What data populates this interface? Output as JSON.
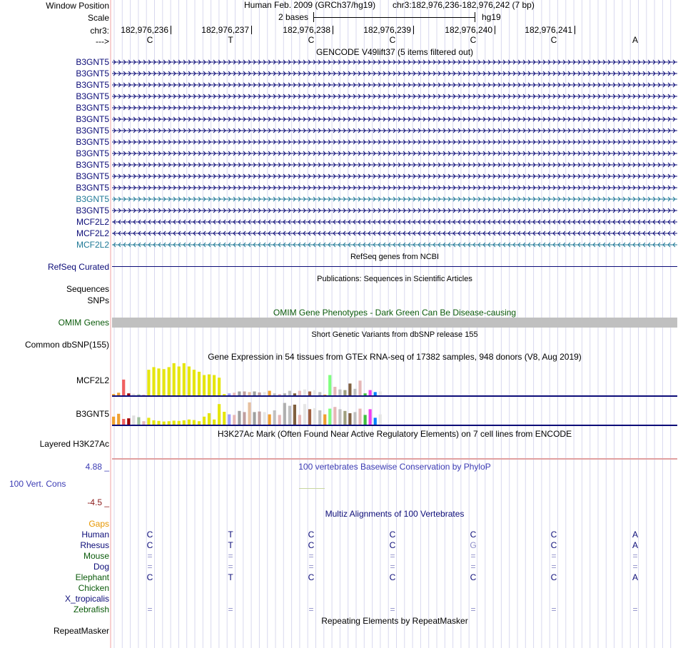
{
  "header": {
    "window_position_label": "Window Position",
    "scale_label": "Scale",
    "chr_label": "chr3:",
    "strand_label": "--->",
    "assembly": "Human Feb. 2009 (GRCh37/hg19)",
    "position": "chr3:182,976,236-182,976,242 (7 bp)",
    "scale_text": "2 bases",
    "scale_db": "hg19",
    "coords": [
      "182,976,236",
      "182,976,237",
      "182,976,238",
      "182,976,239",
      "182,976,240",
      "182,976,241"
    ],
    "bases": [
      "C",
      "T",
      "C",
      "C",
      "C",
      "C",
      "A"
    ]
  },
  "gencode": {
    "title": "GENCODE V49lift37 (5 items filtered out)",
    "genes": [
      {
        "name": "B3GNT5",
        "dir": ">",
        "color": "#0c0c78"
      },
      {
        "name": "B3GNT5",
        "dir": ">",
        "color": "#0c0c78"
      },
      {
        "name": "B3GNT5",
        "dir": ">",
        "color": "#0c0c78"
      },
      {
        "name": "B3GNT5",
        "dir": ">",
        "color": "#0c0c78"
      },
      {
        "name": "B3GNT5",
        "dir": ">",
        "color": "#0c0c78"
      },
      {
        "name": "B3GNT5",
        "dir": ">",
        "color": "#0c0c78"
      },
      {
        "name": "B3GNT5",
        "dir": ">",
        "color": "#0c0c78"
      },
      {
        "name": "B3GNT5",
        "dir": ">",
        "color": "#0c0c78"
      },
      {
        "name": "B3GNT5",
        "dir": ">",
        "color": "#0c0c78"
      },
      {
        "name": "B3GNT5",
        "dir": ">",
        "color": "#0c0c78"
      },
      {
        "name": "B3GNT5",
        "dir": ">",
        "color": "#0c0c78"
      },
      {
        "name": "B3GNT5",
        "dir": ">",
        "color": "#0c0c78"
      },
      {
        "name": "B3GNT5",
        "dir": ">",
        "color": "#1e7896"
      },
      {
        "name": "B3GNT5",
        "dir": ">",
        "color": "#0c0c78"
      },
      {
        "name": "MCF2L2",
        "dir": "<",
        "color": "#0c0c78"
      },
      {
        "name": "MCF2L2",
        "dir": "<",
        "color": "#0c0c78"
      },
      {
        "name": "MCF2L2",
        "dir": "<",
        "color": "#1e7896"
      }
    ]
  },
  "refseq": {
    "title": "RefSeq genes from NCBI",
    "label": "RefSeq Curated",
    "color": "#0c0c78"
  },
  "publications": {
    "title": "Publications: Sequences in Scientific Articles",
    "label1": "Sequences",
    "label2": "SNPs"
  },
  "omim": {
    "title": "OMIM Gene Phenotypes - Dark Green Can Be Disease-causing",
    "label": "OMIM Genes",
    "color": "#0a5a0a",
    "bar_color": "#c0c0c0"
  },
  "dbsnp": {
    "title": "Short Genetic Variants from dbSNP release 155",
    "label": "Common dbSNP(155)"
  },
  "gtex": {
    "title": "Gene Expression in 54 tissues from GTEx RNA-seq of 17382 samples, 948 donors (V8, Aug 2019)",
    "genes": [
      {
        "label": "MCF2L2",
        "values": [
          0.04,
          0.08,
          0.48,
          0.06,
          0.05,
          0.03,
          0.02,
          0.78,
          0.86,
          0.82,
          0.8,
          0.86,
          0.98,
          0.88,
          0.98,
          0.88,
          0.78,
          0.72,
          0.62,
          0.64,
          0.62,
          0.54,
          0.04,
          0.06,
          0.08,
          0.12,
          0.12,
          0.1,
          0.12,
          0.09,
          0.1,
          0.14,
          0.06,
          0.04,
          0.06,
          0.14,
          0.06,
          0.14,
          0.18,
          0.12,
          0.16,
          0.1,
          0.02,
          0.62,
          0.26,
          0.18,
          0.16,
          0.36,
          0.2,
          0.45,
          0.06,
          0.16,
          0.1,
          0.12
        ]
      },
      {
        "label": "B3GNT5",
        "values": [
          0.28,
          0.38,
          0.2,
          0.22,
          0.32,
          0.26,
          0.12,
          0.24,
          0.15,
          0.13,
          0.11,
          0.12,
          0.14,
          0.13,
          0.15,
          0.18,
          0.16,
          0.12,
          0.28,
          0.4,
          0.18,
          0.72,
          0.45,
          0.36,
          0.34,
          0.48,
          0.44,
          0.78,
          0.44,
          0.46,
          0.44,
          0.36,
          0.5,
          0.34,
          0.76,
          0.66,
          0.7,
          0.34,
          0.72,
          0.54,
          0.58,
          0.5,
          0.36,
          0.56,
          0.62,
          0.54,
          0.48,
          0.4,
          0.44,
          0.56,
          0.34,
          0.54,
          0.24,
          0.36
        ]
      }
    ],
    "colors": [
      "#f0a030",
      "#f0a030",
      "#f06060",
      "#a00000",
      "#e0e0e0",
      "#a0c0a0",
      "#e6b8b8",
      "#e6e610",
      "#e6e610",
      "#e6e610",
      "#e6e610",
      "#e6e610",
      "#e6e610",
      "#e6e610",
      "#e6e610",
      "#e6e610",
      "#e6e610",
      "#e6e610",
      "#e6e610",
      "#e6e610",
      "#e6e610",
      "#e6e610",
      "#e6e610",
      "#a0a0ff",
      "#e6b8b8",
      "#a0a0a0",
      "#c0a0a0",
      "#e6c0a0",
      "#a0a0a0",
      "#c0a0a0",
      "#e6e6e6",
      "#f0a030",
      "#c0c0c0",
      "#e6b8b8",
      "#b0b0b0",
      "#c0c0c0",
      "#806040",
      "#e6b8b8",
      "#e6e6e6",
      "#a06040",
      "#e6e6e6",
      "#c0c0c0",
      "#f0a030",
      "#80ff80",
      "#e6b8b8",
      "#c0c0c0",
      "#a0a080",
      "#806040",
      "#c0c0c0",
      "#e6b8b8",
      "#40c040",
      "#f040f0",
      "#0080ff",
      "#e6e6e6"
    ]
  },
  "h3k27ac": {
    "title": "H3K27Ac Mark (Often Found Near Active Regulatory Elements) on 7 cell lines from ENCODE",
    "label": "Layered H3K27Ac"
  },
  "phylop": {
    "title": "100 vertebrates Basewise Conservation by PhyloP",
    "max": "4.88 _",
    "min": "-4.5 _",
    "label": "100 Vert. Cons",
    "color": "#3c3cb4"
  },
  "multiz": {
    "title": "Multiz Alignments of 100 Vertebrates",
    "gaps_label": "Gaps",
    "species": [
      {
        "name": "Human",
        "color": "#0c0c78",
        "bases": [
          "C",
          "T",
          "C",
          "C",
          "C",
          "C",
          "A"
        ]
      },
      {
        "name": "Rhesus",
        "color": "#0c0c78",
        "bases": [
          "C",
          "T",
          "C",
          "C",
          "G",
          "C",
          "A"
        ]
      },
      {
        "name": "Mouse",
        "color": "#0a5a0a",
        "bases": [
          "=",
          "=",
          "=",
          "=",
          "=",
          "=",
          "="
        ]
      },
      {
        "name": "Dog",
        "color": "#0c0c78",
        "bases": [
          "=",
          "=",
          "=",
          "=",
          "=",
          "=",
          "="
        ]
      },
      {
        "name": "Elephant",
        "color": "#0a5a0a",
        "bases": [
          "C",
          "T",
          "C",
          "C",
          "C",
          "C",
          "A"
        ]
      },
      {
        "name": "Chicken",
        "color": "#0a5a0a",
        "bases": [
          "",
          "",
          "",
          "",
          "",
          "",
          ""
        ]
      },
      {
        "name": "X_tropicalis",
        "color": "#0c0c78",
        "bases": [
          "",
          "",
          "",
          "",
          "",
          "",
          ""
        ]
      },
      {
        "name": "Zebrafish",
        "color": "#0a5a0a",
        "bases": [
          "=",
          "=",
          "=",
          "=",
          "=",
          "=",
          "="
        ]
      }
    ]
  },
  "repeatmasker": {
    "title": "Repeating Elements by RepeatMasker",
    "label": "RepeatMasker"
  }
}
